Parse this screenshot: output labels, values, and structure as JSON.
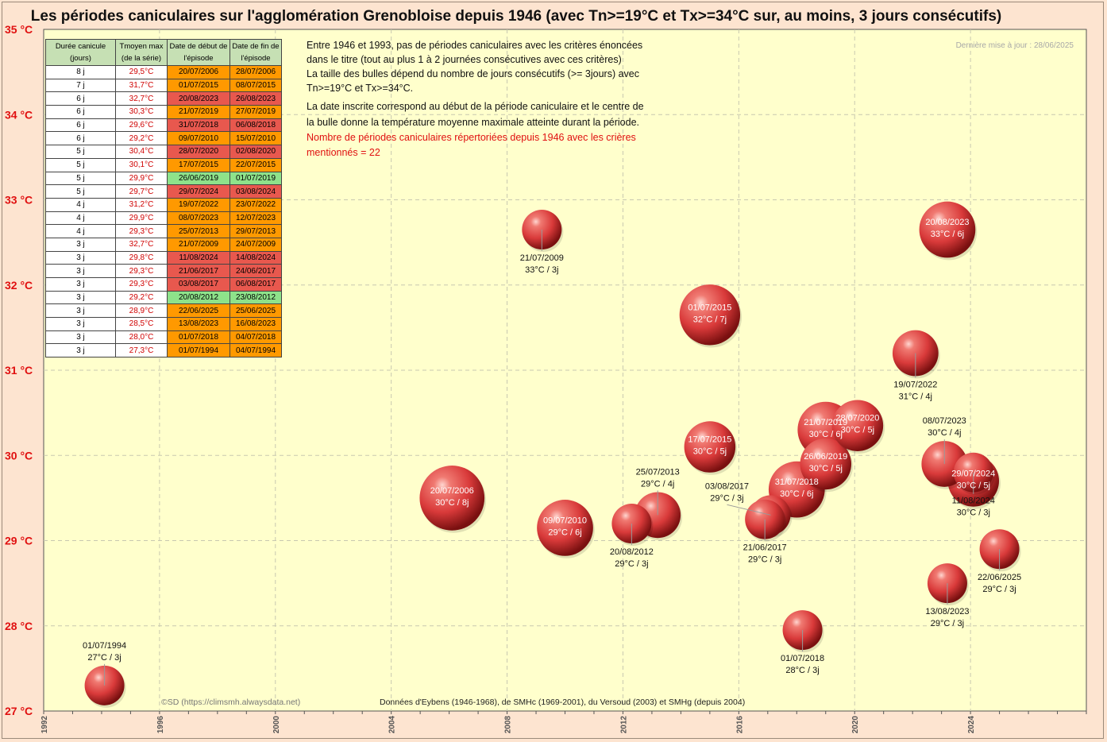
{
  "title": "Les périodes caniculaires sur l'agglomération  Grenobloise  depuis 1946 (avec Tn>=19°C et Tx>=34°C sur,  au moins,  3 jours consécutifs)",
  "updated": "Dernière mise à jour : 28/06/2025",
  "annotation": {
    "line1": "Entre 1946  et 1993,  pas de périodes caniculaires avec les critères énoncées",
    "line2": "dans le titre (tout  au plus  1 à 2 journées consécutives avec ces critères)",
    "line3": " La taille des bulles dépend du nombre de jours consécutifs (>= 3jours)  avec",
    "line4": " Tn>=19°C  et Tx>=34°C.",
    "line5": "La date inscrite correspond au début de la période caniculaire et le centre de",
    "line6": "la bulle donne la température moyenne maximale atteinte durant la période.",
    "red1": "Nombre de périodes caniculaires répertoriées depuis 1946 avec les crières",
    "red2": "mentionnés  = 22"
  },
  "credit": "©SD (https://climsmh.alwaysdata.net)",
  "source": "Données d'Eybens (1946-1968), de SMHc (1969-2001), du Versoud (2003) et SMHg (depuis 2004)",
  "colors": {
    "orange": "#ff9900",
    "red": "#e8584e",
    "green": "#8ee28a",
    "bubble": "#e03030",
    "plot_bg": "#ffffcc",
    "axis_text": "#e01010"
  },
  "table": {
    "headers": [
      "Durée canicule (jours)",
      "Tmoyen max (de la série)",
      "Date de début de l'épisode",
      "Date de fin de l'épisode"
    ],
    "rows": [
      {
        "dur": "8 j",
        "tmoy": "29,5°C",
        "start": "20/07/2006",
        "end": "28/07/2006",
        "color": "orange"
      },
      {
        "dur": "7 j",
        "tmoy": "31,7°C",
        "start": "01/07/2015",
        "end": "08/07/2015",
        "color": "orange"
      },
      {
        "dur": "6 j",
        "tmoy": "32,7°C",
        "start": "20/08/2023",
        "end": "26/08/2023",
        "color": "red"
      },
      {
        "dur": "6 j",
        "tmoy": "30,3°C",
        "start": "21/07/2019",
        "end": "27/07/2019",
        "color": "orange"
      },
      {
        "dur": "6 j",
        "tmoy": "29,6°C",
        "start": "31/07/2018",
        "end": "06/08/2018",
        "color": "red"
      },
      {
        "dur": "6 j",
        "tmoy": "29,2°C",
        "start": "09/07/2010",
        "end": "15/07/2010",
        "color": "orange"
      },
      {
        "dur": "5 j",
        "tmoy": "30,4°C",
        "start": "28/07/2020",
        "end": "02/08/2020",
        "color": "red"
      },
      {
        "dur": "5 j",
        "tmoy": "30,1°C",
        "start": "17/07/2015",
        "end": "22/07/2015",
        "color": "orange"
      },
      {
        "dur": "5 j",
        "tmoy": "29,9°C",
        "start": "26/06/2019",
        "end": "01/07/2019",
        "color": "green"
      },
      {
        "dur": "5 j",
        "tmoy": "29,7°C",
        "start": "29/07/2024",
        "end": "03/08/2024",
        "color": "red"
      },
      {
        "dur": "4 j",
        "tmoy": "31,2°C",
        "start": "19/07/2022",
        "end": "23/07/2022",
        "color": "orange"
      },
      {
        "dur": "4 j",
        "tmoy": "29,9°C",
        "start": "08/07/2023",
        "end": "12/07/2023",
        "color": "orange"
      },
      {
        "dur": "4 j",
        "tmoy": "29,3°C",
        "start": "25/07/2013",
        "end": "29/07/2013",
        "color": "orange"
      },
      {
        "dur": "3 j",
        "tmoy": "32,7°C",
        "start": "21/07/2009",
        "end": "24/07/2009",
        "color": "orange"
      },
      {
        "dur": "3 j",
        "tmoy": "29,8°C",
        "start": "11/08/2024",
        "end": "14/08/2024",
        "color": "red"
      },
      {
        "dur": "3 j",
        "tmoy": "29,3°C",
        "start": "21/06/2017",
        "end": "24/06/2017",
        "color": "red"
      },
      {
        "dur": "3 j",
        "tmoy": "29,3°C",
        "start": "03/08/2017",
        "end": "06/08/2017",
        "color": "red"
      },
      {
        "dur": "3 j",
        "tmoy": "29,2°C",
        "start": "20/08/2012",
        "end": "23/08/2012",
        "color": "green"
      },
      {
        "dur": "3 j",
        "tmoy": "28,9°C",
        "start": "22/06/2025",
        "end": "25/06/2025",
        "color": "orange"
      },
      {
        "dur": "3 j",
        "tmoy": "28,5°C",
        "start": "13/08/2023",
        "end": "16/08/2023",
        "color": "orange"
      },
      {
        "dur": "3 j",
        "tmoy": "28,0°C",
        "start": "01/07/2018",
        "end": "04/07/2018",
        "color": "orange"
      },
      {
        "dur": "3 j",
        "tmoy": "27,3°C",
        "start": "01/07/1994",
        "end": "04/07/1994",
        "color": "orange"
      }
    ]
  },
  "chart_data": {
    "type": "scatter",
    "title": "Les périodes caniculaires sur l'agglomération  Grenobloise  depuis 1946 (avec Tn>=19°C et Tx>=34°C sur,  au moins,  3 jours consécutifs)",
    "xlim": [
      1992,
      2028
    ],
    "ylim": [
      27,
      35
    ],
    "x_ticks": [
      "1992",
      "1996",
      "2000",
      "2004",
      "2008",
      "2012",
      "2016",
      "2020",
      "2024"
    ],
    "y_ticks": [
      "27 °C",
      "28 °C",
      "29 °C",
      "30 °C",
      "31 °C",
      "32 °C",
      "33 °C",
      "34 °C",
      "35 °C"
    ],
    "grid": true,
    "bubbles": [
      {
        "x": 1994.1,
        "y": 27.3,
        "days": 3,
        "date": "01/07/1994",
        "label": "27°C / 3j",
        "pos": "above"
      },
      {
        "x": 2006.1,
        "y": 29.5,
        "days": 8,
        "date": "20/07/2006",
        "label": "30°C / 8j",
        "pos": "in"
      },
      {
        "x": 2009.2,
        "y": 32.65,
        "days": 3,
        "date": "21/07/2009",
        "label": "33°C / 3j",
        "pos": "below"
      },
      {
        "x": 2010.0,
        "y": 29.15,
        "days": 6,
        "date": "09/07/2010",
        "label": "29°C / 6j",
        "pos": "in"
      },
      {
        "x": 2012.3,
        "y": 29.2,
        "days": 3,
        "date": "20/08/2012",
        "label": "29°C / 3j",
        "pos": "below"
      },
      {
        "x": 2013.2,
        "y": 29.3,
        "days": 4,
        "date": "25/07/2013",
        "label": "29°C / 4j",
        "pos": "above"
      },
      {
        "x": 2015.0,
        "y": 31.65,
        "days": 7,
        "date": "01/07/2015",
        "label": "32°C / 7j",
        "pos": "in"
      },
      {
        "x": 2015.0,
        "y": 30.1,
        "days": 5,
        "date": "17/07/2015",
        "label": "30°C / 5j",
        "pos": "in"
      },
      {
        "x": 2017.1,
        "y": 29.3,
        "days": 3,
        "date": "03/08/2017",
        "label": "29°C / 3j",
        "pos": "above-left"
      },
      {
        "x": 2016.9,
        "y": 29.25,
        "days": 3,
        "date": "21/06/2017",
        "label": "29°C / 3j",
        "pos": "below"
      },
      {
        "x": 2018.2,
        "y": 27.95,
        "days": 3,
        "date": "01/07/2018",
        "label": "28°C / 3j",
        "pos": "below"
      },
      {
        "x": 2018.0,
        "y": 29.6,
        "days": 6,
        "date": "31/07/2018",
        "label": "30°C / 6j",
        "pos": "in"
      },
      {
        "x": 2019.0,
        "y": 30.3,
        "days": 6,
        "date": "21/07/2019",
        "label": "30°C / 6j",
        "pos": "in"
      },
      {
        "x": 2019.0,
        "y": 29.9,
        "days": 5,
        "date": "26/06/2019",
        "label": "30°C / 5j",
        "pos": "in"
      },
      {
        "x": 2020.1,
        "y": 30.35,
        "days": 5,
        "date": "28/07/2020",
        "label": "30°C / 5j",
        "pos": "in"
      },
      {
        "x": 2022.1,
        "y": 31.2,
        "days": 4,
        "date": "19/07/2022",
        "label": "31°C / 4j",
        "pos": "below"
      },
      {
        "x": 2023.2,
        "y": 32.65,
        "days": 6,
        "date": "20/08/2023",
        "label": "33°C / 6j",
        "pos": "in"
      },
      {
        "x": 2023.1,
        "y": 29.9,
        "days": 4,
        "date": "08/07/2023",
        "label": "30°C / 4j",
        "pos": "above"
      },
      {
        "x": 2023.2,
        "y": 28.5,
        "days": 3,
        "date": "13/08/2023",
        "label": "29°C / 3j",
        "pos": "below"
      },
      {
        "x": 2024.1,
        "y": 29.8,
        "days": 3,
        "date": "11/08/2024",
        "label": "30°C / 3j",
        "pos": "below"
      },
      {
        "x": 2024.1,
        "y": 29.7,
        "days": 5,
        "date": "29/07/2024",
        "label": "30°C / 5j",
        "pos": "in"
      },
      {
        "x": 2025.0,
        "y": 28.9,
        "days": 3,
        "date": "22/06/2025",
        "label": "29°C / 3j",
        "pos": "below"
      }
    ]
  }
}
